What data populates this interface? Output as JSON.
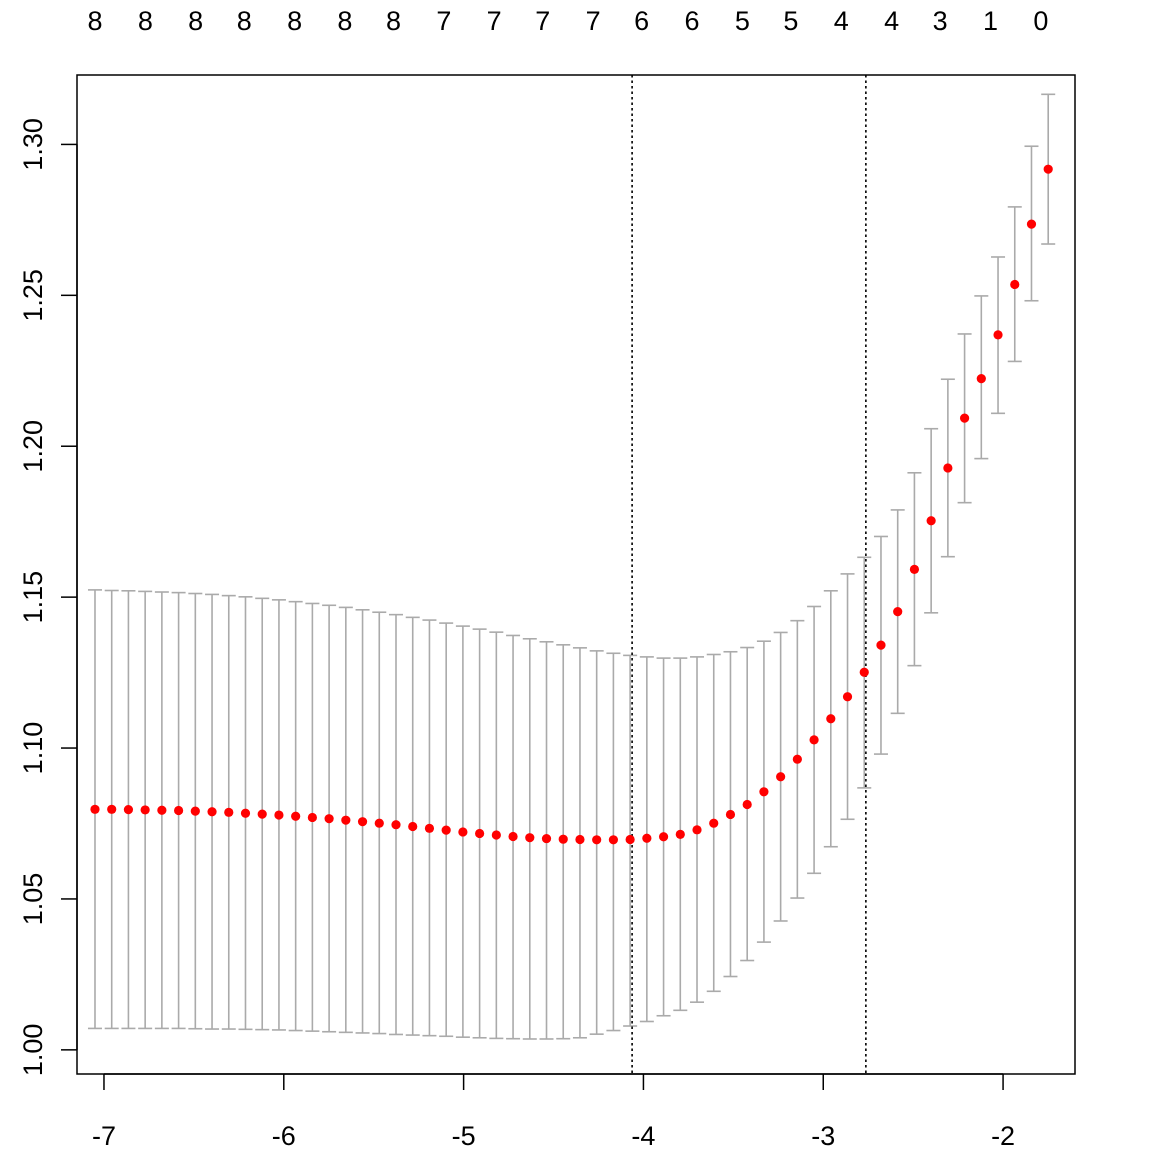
{
  "chart_data": {
    "type": "scatter",
    "title": "",
    "xlabel": "",
    "ylabel": "",
    "xlim": [
      -7.15,
      -1.6
    ],
    "ylim": [
      0.992,
      1.323
    ],
    "x_ticks": [
      -7,
      -6,
      -5,
      -4,
      -3,
      -2
    ],
    "y_ticks": [
      1.0,
      1.05,
      1.1,
      1.15,
      1.2,
      1.25,
      1.3
    ],
    "top_axis": {
      "positions": [
        -7.05,
        -6.77,
        -6.49,
        -6.22,
        -5.94,
        -5.66,
        -5.39,
        -5.11,
        -4.83,
        -4.56,
        -4.28,
        -4.01,
        -3.73,
        -3.45,
        -3.18,
        -2.9,
        -2.62,
        -2.35,
        -2.07,
        -1.79
      ],
      "labels": [
        "8",
        "8",
        "8",
        "8",
        "8",
        "8",
        "8",
        "7",
        "7",
        "7",
        "7",
        "6",
        "6",
        "5",
        "5",
        "4",
        "4",
        "3",
        "1",
        "0"
      ]
    },
    "vlines": [
      -4.063,
      -2.763
    ],
    "point_color": "#ff0000",
    "errorbar_color": "#aaaaaa",
    "series": [
      {
        "x": [
          -7.05,
          -6.957,
          -6.864,
          -6.771,
          -6.678,
          -6.585,
          -6.492,
          -6.399,
          -6.306,
          -6.213,
          -6.12,
          -6.027,
          -5.934,
          -5.841,
          -5.748,
          -5.655,
          -5.562,
          -5.469,
          -5.376,
          -5.283,
          -5.19,
          -5.097,
          -5.004,
          -4.911,
          -4.818,
          -4.725,
          -4.632,
          -4.539,
          -4.446,
          -4.353,
          -4.26,
          -4.167,
          -4.074,
          -3.981,
          -3.888,
          -3.795,
          -3.702,
          -3.609,
          -3.516,
          -3.423,
          -3.33,
          -3.237,
          -3.144,
          -3.051,
          -2.958,
          -2.865,
          -2.772,
          -2.679,
          -2.586,
          -2.493,
          -2.4,
          -2.307,
          -2.214,
          -2.121,
          -2.028,
          -1.935,
          -1.842,
          -1.749
        ],
        "y": [
          1.0797,
          1.0797,
          1.0796,
          1.0795,
          1.0794,
          1.0793,
          1.0791,
          1.0789,
          1.0787,
          1.0784,
          1.0781,
          1.0778,
          1.0774,
          1.077,
          1.0766,
          1.0761,
          1.0756,
          1.0751,
          1.0746,
          1.074,
          1.0734,
          1.0728,
          1.0722,
          1.0717,
          1.0712,
          1.0707,
          1.0703,
          1.07,
          1.0698,
          1.0697,
          1.0696,
          1.0696,
          1.0697,
          1.0701,
          1.0706,
          1.0714,
          1.0729,
          1.0751,
          1.078,
          1.0813,
          1.0855,
          1.0905,
          1.0963,
          1.1027,
          1.1097,
          1.117,
          1.1251,
          1.1341,
          1.1452,
          1.1592,
          1.1753,
          1.1928,
          1.2093,
          1.2224,
          1.2369,
          1.2536,
          1.2736,
          1.2918
        ],
        "upper": [
          1.1524,
          1.1522,
          1.1521,
          1.1519,
          1.1517,
          1.1515,
          1.1512,
          1.1509,
          1.1505,
          1.1501,
          1.1496,
          1.1491,
          1.1485,
          1.1479,
          1.1473,
          1.1466,
          1.1458,
          1.145,
          1.1442,
          1.1433,
          1.1424,
          1.1414,
          1.1404,
          1.1394,
          1.1384,
          1.1373,
          1.1362,
          1.1352,
          1.1342,
          1.1332,
          1.1322,
          1.1314,
          1.1307,
          1.1302,
          1.1298,
          1.1298,
          1.1302,
          1.131,
          1.1319,
          1.1333,
          1.1354,
          1.1383,
          1.1422,
          1.1469,
          1.1521,
          1.1577,
          1.1632,
          1.1701,
          1.1789,
          1.1912,
          1.2058,
          1.2222,
          1.2372,
          1.2498,
          1.2627,
          1.2793,
          1.2994,
          1.3166
        ],
        "lower": [
          1.0071,
          1.0071,
          1.0071,
          1.0071,
          1.0071,
          1.0071,
          1.007,
          1.0069,
          1.0069,
          1.0068,
          1.0067,
          1.0066,
          1.0064,
          1.0062,
          1.006,
          1.0058,
          1.0056,
          1.0054,
          1.0051,
          1.0049,
          1.0047,
          1.0045,
          1.0042,
          1.004,
          1.0038,
          1.0037,
          1.0036,
          1.0036,
          1.0037,
          1.004,
          1.0052,
          1.0064,
          1.0079,
          1.0094,
          1.0113,
          1.0131,
          1.0158,
          1.0194,
          1.0243,
          1.0296,
          1.0357,
          1.0427,
          1.0503,
          1.0585,
          1.0673,
          1.0764,
          1.0868,
          1.098,
          1.1115,
          1.1273,
          1.1448,
          1.1634,
          1.1813,
          1.1959,
          1.2109,
          1.2281,
          1.2482,
          1.267
        ]
      }
    ]
  }
}
